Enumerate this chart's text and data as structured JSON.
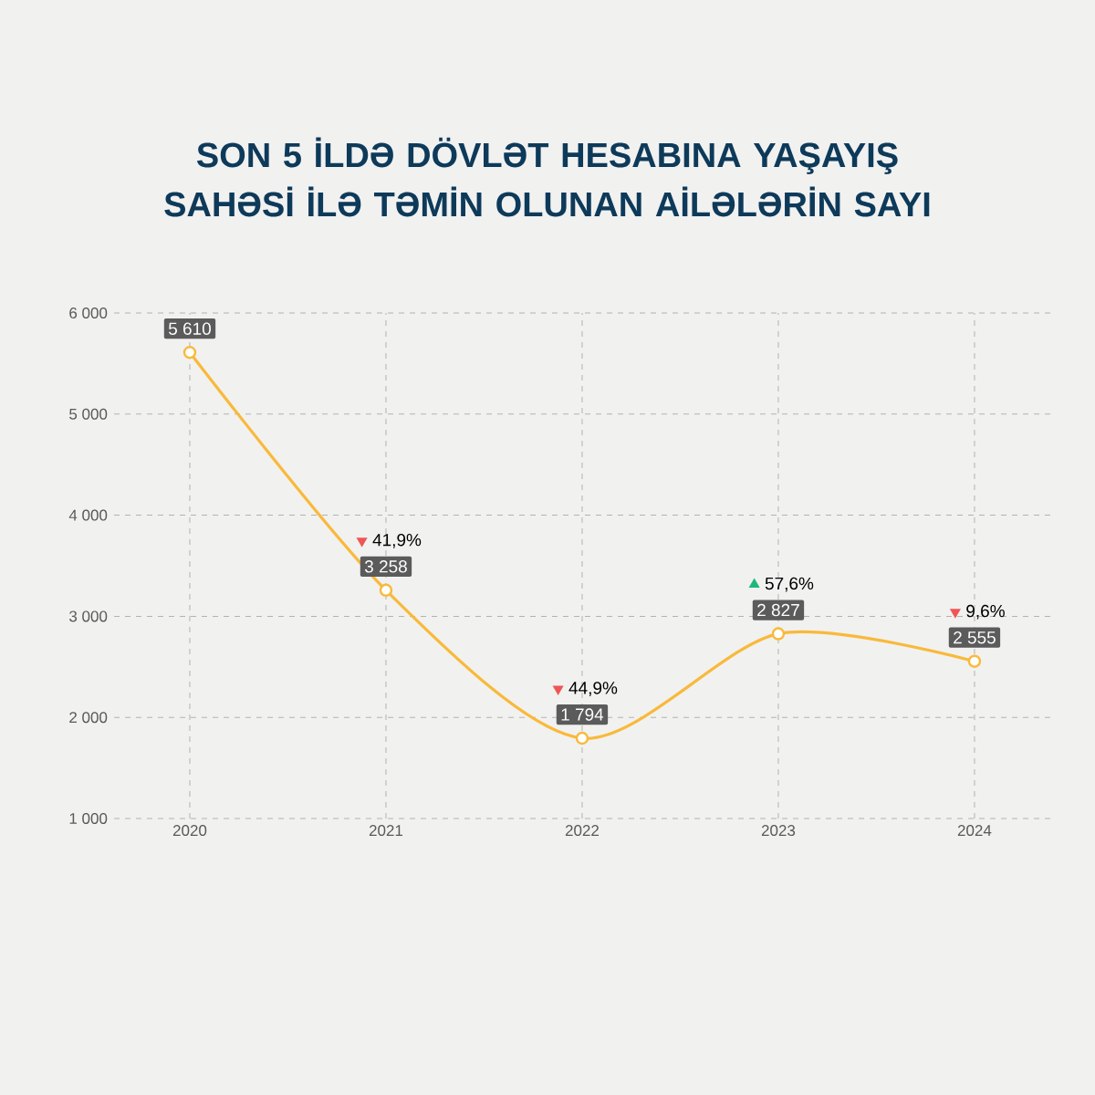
{
  "chart_data": {
    "type": "line",
    "title": "SON 5 İLDƏ DÖVLƏT HESABINA YAŞAYIŞ SAHƏSİ İLƏ TƏMİN OLUNAN AİLƏLƏRİN SAYI",
    "categories": [
      "2020",
      "2021",
      "2022",
      "2023",
      "2024"
    ],
    "values": [
      5610,
      3258,
      1794,
      2827,
      2555
    ],
    "value_labels": [
      "5 610",
      "3 258",
      "1 794",
      "2 827",
      "2 555"
    ],
    "color": "#f9b93a",
    "ylim": [
      1000,
      6000
    ],
    "yticks": [
      {
        "value": 1000,
        "label": "1 000"
      },
      {
        "value": 2000,
        "label": "2 000"
      },
      {
        "value": 3000,
        "label": "3 000"
      },
      {
        "value": 4000,
        "label": "4 000"
      },
      {
        "value": 5000,
        "label": "5 000"
      },
      {
        "value": 6000,
        "label": "6 000"
      }
    ],
    "annotations": [
      {
        "text": "41,9%",
        "x": "2021",
        "y": 3258
      },
      {
        "text": "44,9%",
        "x": "2022",
        "y": 1794
      },
      {
        "text": "57,6%",
        "x": "2023",
        "y": 2827
      },
      {
        "text": "9,6%",
        "x": "2024",
        "y": 2555
      }
    ],
    "grid": true,
    "marker": "circle",
    "line_style": "solid"
  }
}
